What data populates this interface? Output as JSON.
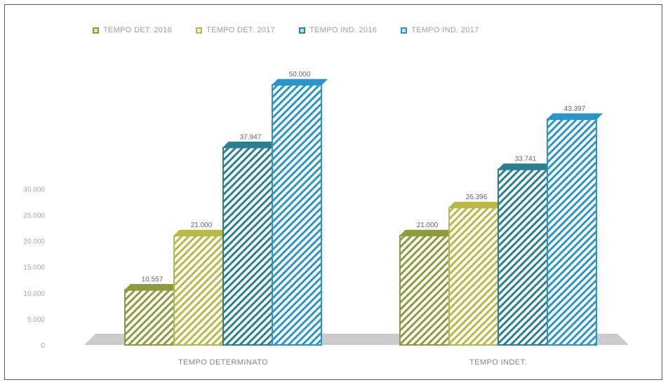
{
  "chart_data": {
    "type": "bar",
    "title": "",
    "xlabel": "",
    "ylabel": "",
    "ylim": [
      0,
      55000
    ],
    "y_ticks": [
      "0",
      "5.000",
      "10.000",
      "15.000",
      "20.000",
      "25.000",
      "30.000"
    ],
    "categories": [
      "TEMPO DETERMINATO",
      "TEMPO INDET."
    ],
    "series": [
      {
        "name": "TEMPO DET. 2016",
        "values": [
          10557,
          21000
        ],
        "color": "#8d9a3e",
        "pattern": "#dfe3c0"
      },
      {
        "name": "TEMPO DET. 2017",
        "values": [
          21000,
          26396
        ],
        "color": "#b8b84a",
        "pattern": "#f0f0c8"
      },
      {
        "name": "TEMPO IND. 2016",
        "values": [
          37947,
          33741
        ],
        "color": "#2a7f90",
        "pattern": "#bfe0ea"
      },
      {
        "name": "TEMPO IND. 2017",
        "values": [
          50000,
          43397
        ],
        "color": "#2c95c8",
        "pattern": "#c9e8f6"
      }
    ],
    "data_labels": [
      [
        "10.557",
        "21.000",
        "37.947",
        "50.000"
      ],
      [
        "21.000",
        "26.396",
        "33.741",
        "43.397"
      ]
    ],
    "legend_position": "top",
    "grid": false
  }
}
